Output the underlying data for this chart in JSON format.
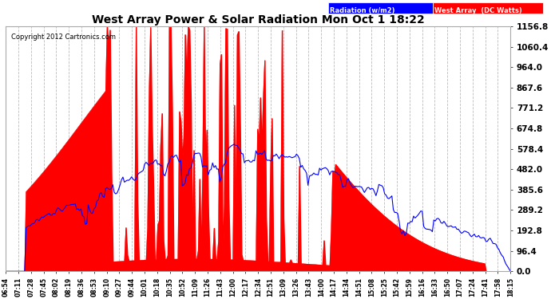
{
  "title": "West Array Power & Solar Radiation Mon Oct 1 18:22",
  "copyright": "Copyright 2012 Cartronics.com",
  "legend_radiation": "Radiation (w/m2)",
  "legend_west": "West Array  (DC Watts)",
  "bg_color": "#ffffff",
  "plot_bg_color": "#ffffff",
  "grid_color": "#bbbbbb",
  "title_color": "black",
  "y_max": 1156.8,
  "y_min": 0.0,
  "y_ticks": [
    0.0,
    96.4,
    192.8,
    289.2,
    385.6,
    482.0,
    578.4,
    674.8,
    771.2,
    867.6,
    964.0,
    1060.4,
    1156.8
  ],
  "x_labels": [
    "06:54",
    "07:11",
    "07:28",
    "07:45",
    "08:02",
    "08:19",
    "08:36",
    "08:53",
    "09:10",
    "09:27",
    "09:44",
    "10:01",
    "10:18",
    "10:35",
    "10:52",
    "11:09",
    "11:26",
    "11:43",
    "12:00",
    "12:17",
    "12:34",
    "12:51",
    "13:09",
    "13:26",
    "13:43",
    "14:00",
    "14:17",
    "14:34",
    "14:51",
    "15:08",
    "15:25",
    "15:42",
    "15:59",
    "16:16",
    "16:33",
    "16:50",
    "17:07",
    "17:24",
    "17:41",
    "17:58",
    "18:15"
  ],
  "west_array_color": "#ff0000",
  "radiation_color": "#0000ff",
  "legend_rad_bg": "#0000ff",
  "legend_west_bg": "#ff0000"
}
